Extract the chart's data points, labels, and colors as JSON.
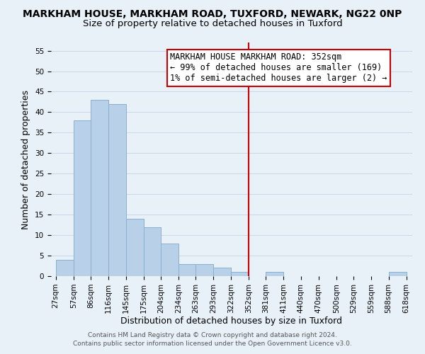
{
  "title": "MARKHAM HOUSE, MARKHAM ROAD, TUXFORD, NEWARK, NG22 0NP",
  "subtitle": "Size of property relative to detached houses in Tuxford",
  "xlabel": "Distribution of detached houses by size in Tuxford",
  "ylabel": "Number of detached properties",
  "bar_color": "#b8d0e8",
  "bar_edgecolor": "#8ab0d0",
  "grid_color": "#c8d8e8",
  "background_color": "#e8f0f8",
  "bin_labels": [
    "27sqm",
    "57sqm",
    "86sqm",
    "116sqm",
    "145sqm",
    "175sqm",
    "204sqm",
    "234sqm",
    "263sqm",
    "293sqm",
    "322sqm",
    "352sqm",
    "381sqm",
    "411sqm",
    "440sqm",
    "470sqm",
    "500sqm",
    "529sqm",
    "559sqm",
    "588sqm",
    "618sqm"
  ],
  "bar_values": [
    4,
    38,
    43,
    42,
    14,
    12,
    8,
    3,
    3,
    2,
    1,
    0,
    1,
    0,
    0,
    0,
    0,
    0,
    0,
    1,
    0
  ],
  "bin_edges": [
    27,
    57,
    86,
    116,
    145,
    175,
    204,
    234,
    263,
    293,
    322,
    352,
    381,
    411,
    440,
    470,
    500,
    529,
    559,
    588,
    618
  ],
  "vline_x": 352,
  "vline_color": "#cc0000",
  "ylim": [
    0,
    57
  ],
  "yticks": [
    0,
    5,
    10,
    15,
    20,
    25,
    30,
    35,
    40,
    45,
    50,
    55
  ],
  "annotation_title": "MARKHAM HOUSE MARKHAM ROAD: 352sqm",
  "annotation_line1": "← 99% of detached houses are smaller (169)",
  "annotation_line2": "1% of semi-detached houses are larger (2) →",
  "footer1": "Contains HM Land Registry data © Crown copyright and database right 2024.",
  "footer2": "Contains public sector information licensed under the Open Government Licence v3.0.",
  "title_fontsize": 10,
  "subtitle_fontsize": 9.5,
  "axis_label_fontsize": 9,
  "tick_fontsize": 7.5,
  "annotation_fontsize": 8.5,
  "footer_fontsize": 6.5
}
